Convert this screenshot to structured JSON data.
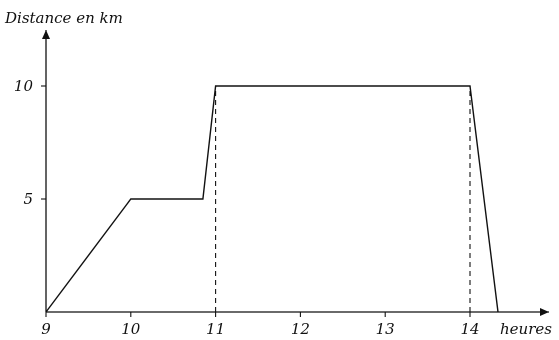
{
  "chart_data": {
    "type": "line",
    "ylabel": "Distance en km",
    "xlabel": "heures",
    "x_ticks": [
      9,
      10,
      11,
      12,
      13,
      14
    ],
    "y_ticks": [
      5,
      10
    ],
    "xlim": [
      9,
      15
    ],
    "ylim": [
      0,
      11.5
    ],
    "grid": false,
    "series": [
      {
        "points": [
          {
            "x": 9,
            "y": 0
          },
          {
            "x": 10,
            "y": 5
          },
          {
            "x": 10.85,
            "y": 5
          },
          {
            "x": 11,
            "y": 10
          },
          {
            "x": 14,
            "y": 10
          },
          {
            "x": 14.33,
            "y": 0
          }
        ]
      }
    ],
    "reference_lines": [
      {
        "x": 11,
        "y": 10
      },
      {
        "x": 14,
        "y": 10
      }
    ]
  }
}
